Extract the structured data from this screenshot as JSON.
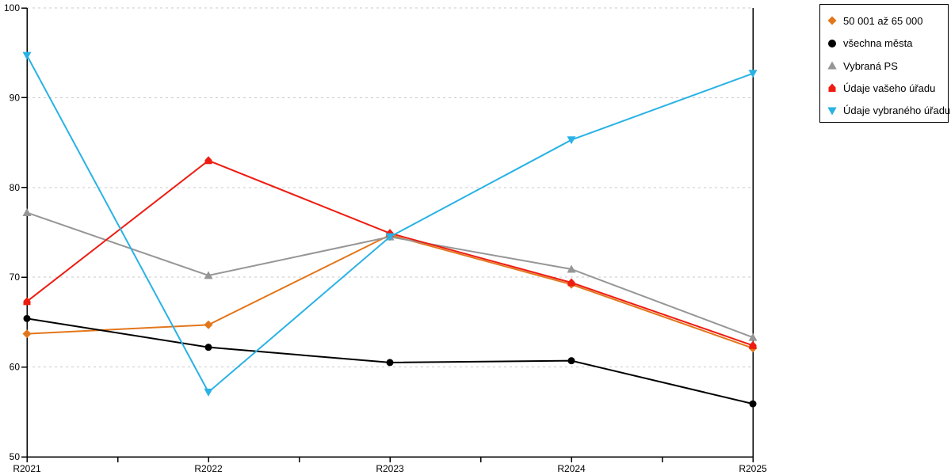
{
  "chart_data": {
    "type": "line",
    "title": "",
    "xlabel": "",
    "ylabel": "",
    "categories": [
      "R2021",
      "R2022",
      "R2023",
      "R2024",
      "R2025"
    ],
    "series": [
      {
        "name": "50 001 až 65 000",
        "marker": "diamond",
        "color": "#E2761B",
        "values": [
          63.7,
          64.7,
          74.7,
          69.2,
          62.1
        ]
      },
      {
        "name": "všechna města",
        "marker": "circle",
        "color": "#000000",
        "values": [
          65.4,
          62.2,
          60.5,
          60.7,
          55.9
        ]
      },
      {
        "name": "Vybraná PS",
        "marker": "triangle-up",
        "color": "#969696",
        "values": [
          77.2,
          70.2,
          74.5,
          70.9,
          63.3
        ]
      },
      {
        "name": "Údaje vašeho úřadu",
        "marker": "pentagon",
        "color": "#EE1C11",
        "values": [
          67.3,
          83.0,
          74.9,
          69.4,
          62.4
        ]
      },
      {
        "name": "Údaje vybraného úřadu",
        "marker": "triangle-down",
        "color": "#29B2E5",
        "values": [
          94.7,
          57.2,
          74.5,
          85.3,
          92.7
        ]
      }
    ],
    "ylim": [
      50,
      100
    ],
    "yticks": [
      50,
      60,
      70,
      80,
      90,
      100
    ],
    "grid": "horizontal-dashed",
    "grid_color": "#C9C9C9",
    "axis_color": "#000000",
    "background": "#FFFFFF",
    "legend_position": "top-right",
    "x_minor_ticks_between_categories": true
  }
}
